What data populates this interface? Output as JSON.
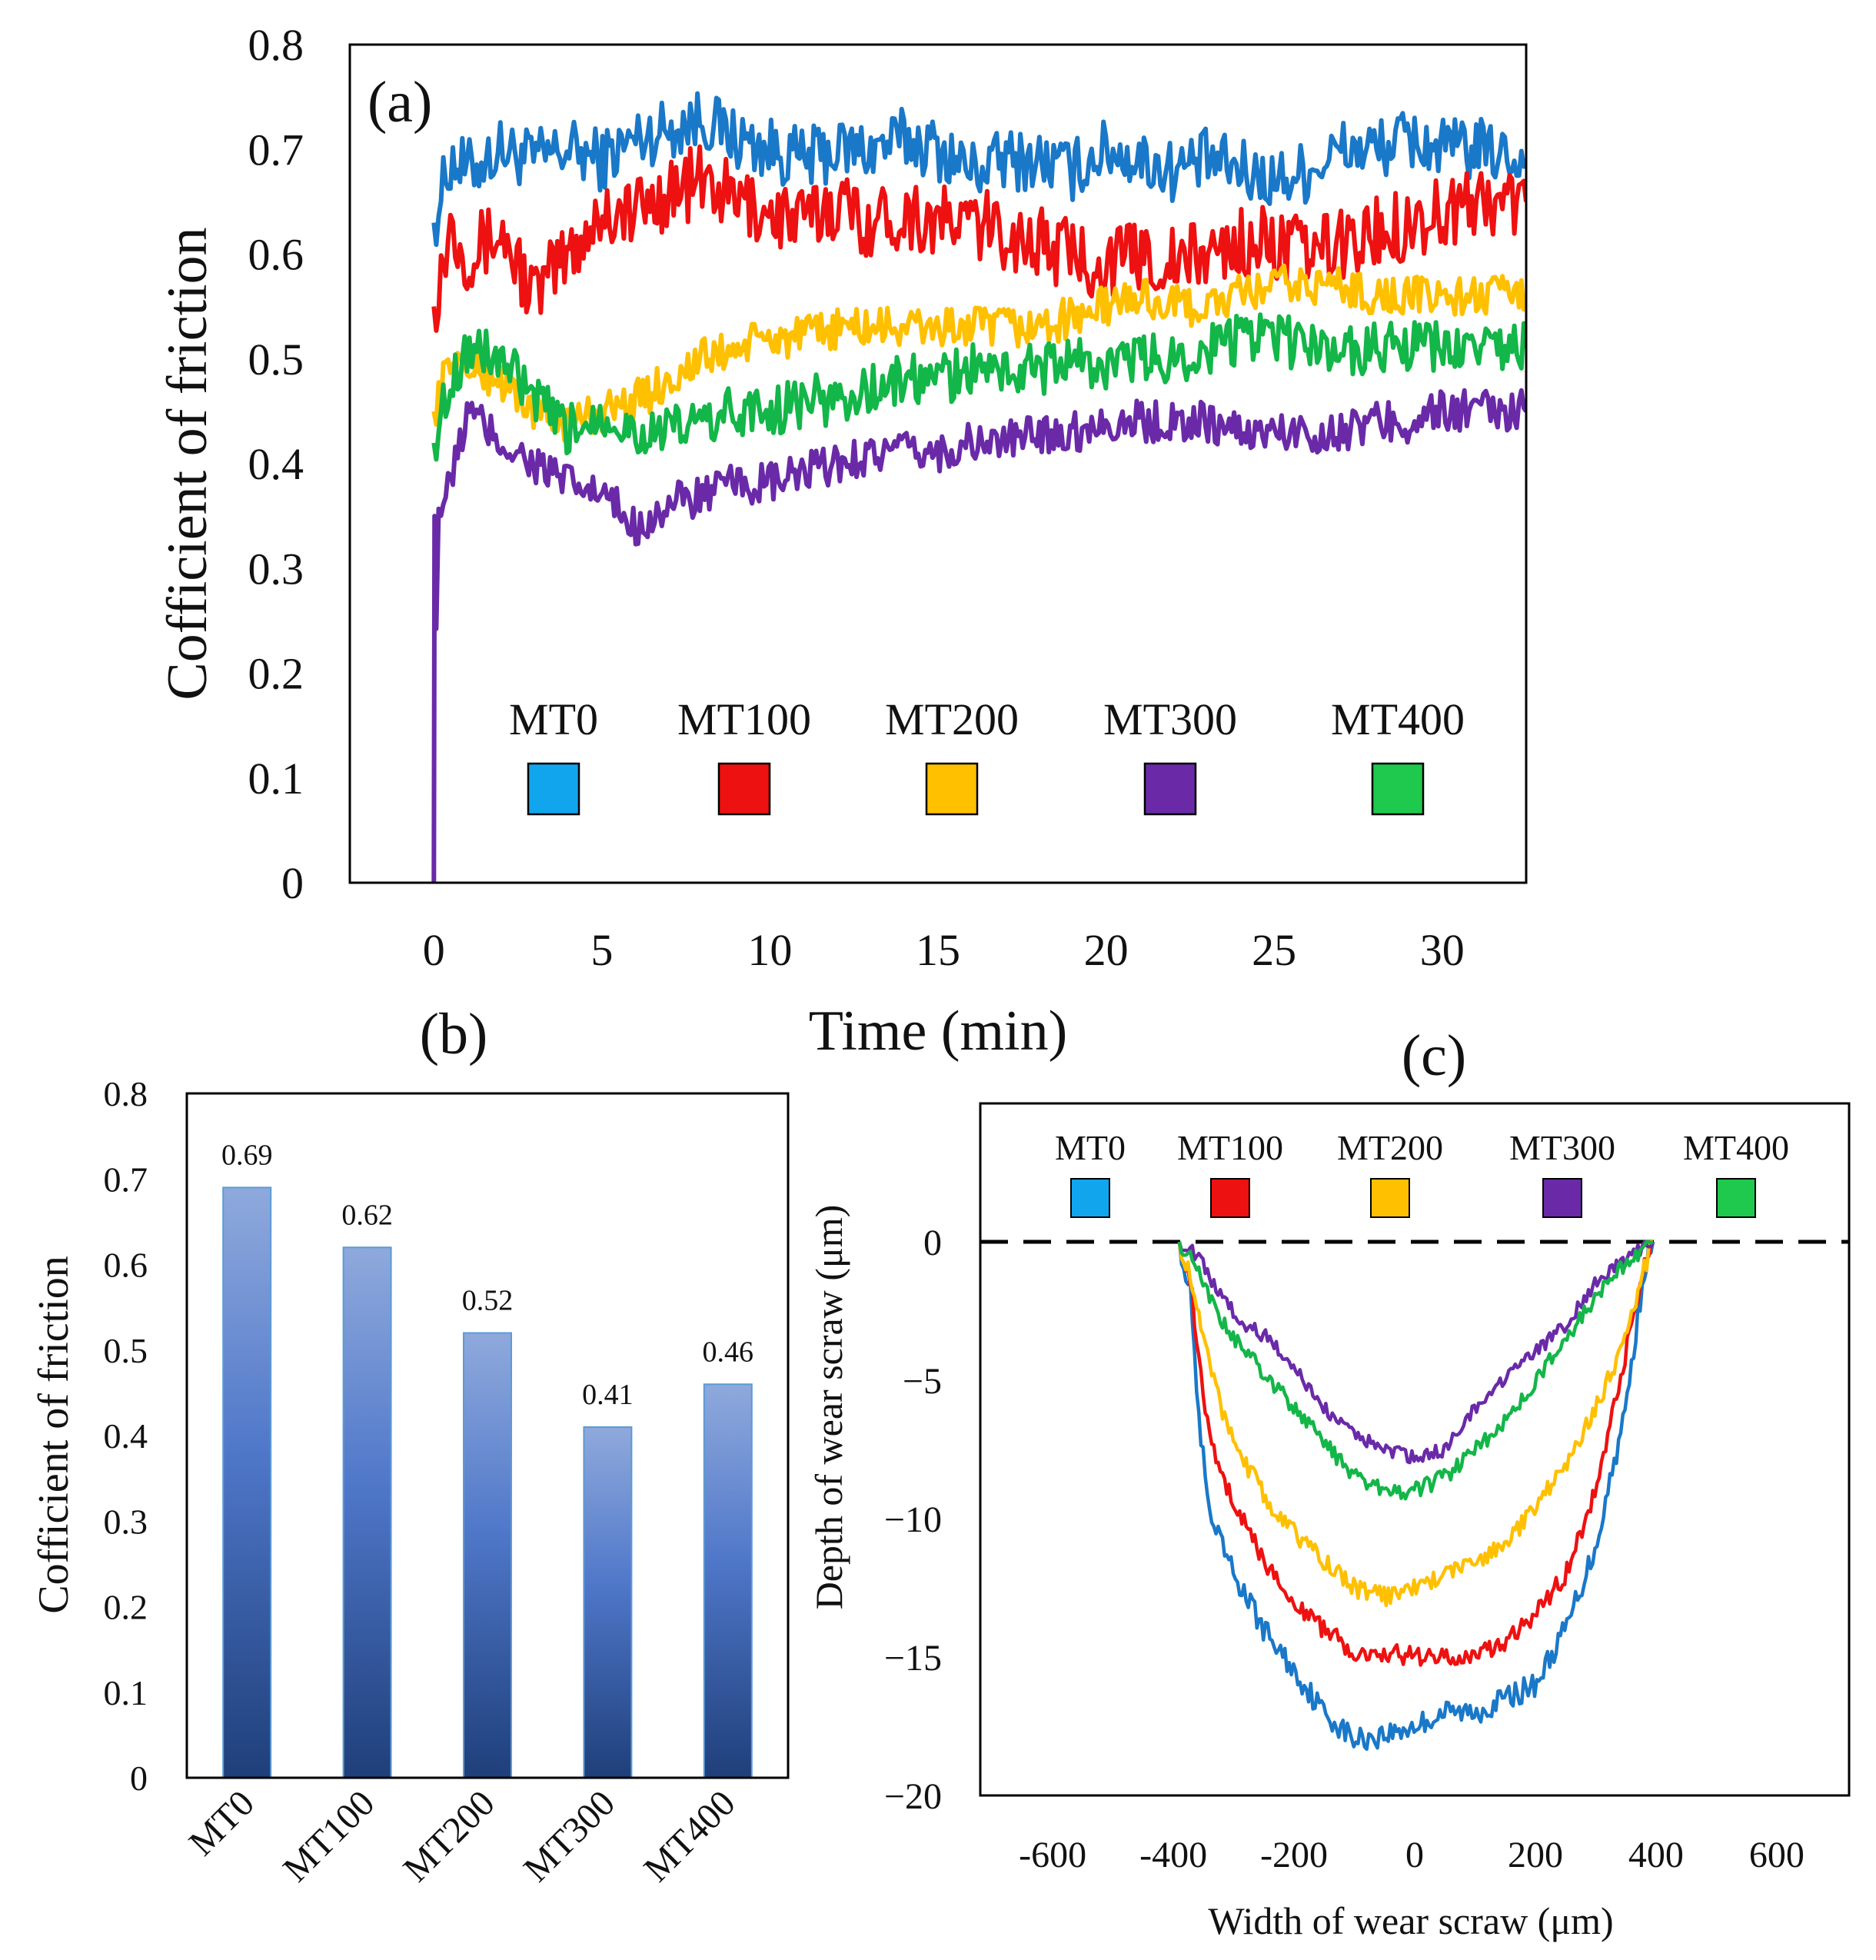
{
  "colors": {
    "MT0": "#1a78c8",
    "MT100": "#ee1111",
    "MT200": "#ffc000",
    "MT300": "#6a2aa8",
    "MT400": "#13b648",
    "bar_top": "#8fa9dc",
    "bar_mid": "#4f77c9",
    "bar_bottom": "#1f3f7a",
    "bar_edge": "#5b9bd5",
    "legend_MT0": "#11a5ee",
    "legend_MT400": "#1ec94e"
  },
  "chart_data": [
    {
      "panel": "(a)",
      "type": "line",
      "xlabel": "Time (min)",
      "ylabel": "Cofficient of friction",
      "xlim": [
        -2.5,
        32.5
      ],
      "ylim": [
        0,
        0.8
      ],
      "xticks": [
        "0",
        "5",
        "10",
        "15",
        "20",
        "25",
        "30"
      ],
      "yticks": [
        "0",
        "0.1",
        "0.2",
        "0.3",
        "0.4",
        "0.5",
        "0.6",
        "0.7",
        "0.8"
      ],
      "legend": [
        "MT0",
        "MT100",
        "MT200",
        "MT300",
        "MT400"
      ],
      "series": [
        {
          "name": "MT0",
          "x": [
            0,
            0.5,
            1,
            2,
            3,
            4,
            5,
            6,
            7,
            8,
            9,
            10,
            11,
            12,
            13,
            14,
            15,
            16,
            17,
            18,
            19,
            20,
            21,
            22,
            23,
            24,
            25,
            26,
            27,
            28,
            29,
            30,
            31,
            32.5
          ],
          "y": [
            0.63,
            0.69,
            0.68,
            0.7,
            0.69,
            0.7,
            0.69,
            0.71,
            0.72,
            0.73,
            0.71,
            0.7,
            0.69,
            0.7,
            0.7,
            0.71,
            0.7,
            0.68,
            0.69,
            0.69,
            0.68,
            0.7,
            0.69,
            0.68,
            0.69,
            0.68,
            0.67,
            0.68,
            0.7,
            0.7,
            0.71,
            0.7,
            0.7,
            0.69
          ],
          "noise": 0.03
        },
        {
          "name": "MT100",
          "x": [
            0,
            0.5,
            1,
            2,
            3,
            4,
            5,
            6,
            7,
            8,
            9,
            10,
            11,
            12,
            13,
            14,
            15,
            16,
            17,
            18,
            19,
            20,
            21,
            22,
            23,
            24,
            25,
            26,
            27,
            28,
            29,
            30,
            31,
            32.5
          ],
          "y": [
            0.55,
            0.63,
            0.6,
            0.62,
            0.56,
            0.6,
            0.64,
            0.64,
            0.66,
            0.67,
            0.65,
            0.64,
            0.63,
            0.65,
            0.63,
            0.64,
            0.63,
            0.63,
            0.62,
            0.61,
            0.6,
            0.59,
            0.6,
            0.59,
            0.6,
            0.61,
            0.61,
            0.6,
            0.61,
            0.62,
            0.63,
            0.64,
            0.65,
            0.65
          ],
          "noise": 0.035
        },
        {
          "name": "MT200",
          "x": [
            0,
            0.5,
            1,
            2,
            3,
            4,
            5,
            6,
            7,
            8,
            9,
            10,
            11,
            12,
            13,
            14,
            15,
            16,
            17,
            18,
            19,
            20,
            21,
            22,
            23,
            24,
            25,
            26,
            27,
            28,
            29,
            30,
            31,
            32.5
          ],
          "y": [
            0.45,
            0.5,
            0.49,
            0.48,
            0.45,
            0.44,
            0.45,
            0.46,
            0.48,
            0.5,
            0.51,
            0.52,
            0.52,
            0.53,
            0.53,
            0.53,
            0.53,
            0.53,
            0.53,
            0.53,
            0.54,
            0.55,
            0.56,
            0.55,
            0.55,
            0.56,
            0.57,
            0.57,
            0.57,
            0.56,
            0.56,
            0.56,
            0.56,
            0.56
          ],
          "noise": 0.02
        },
        {
          "name": "MT300",
          "x": [
            0,
            0.05,
            0.1,
            0.5,
            1,
            2,
            3,
            4,
            5,
            6,
            7,
            8,
            9,
            10,
            11,
            12,
            13,
            14,
            15,
            16,
            17,
            18,
            19,
            20,
            21,
            22,
            23,
            24,
            25,
            26,
            27,
            28,
            29,
            30,
            31,
            32.5
          ],
          "y": [
            0,
            0.2,
            0.35,
            0.38,
            0.45,
            0.42,
            0.4,
            0.38,
            0.37,
            0.34,
            0.36,
            0.37,
            0.38,
            0.38,
            0.39,
            0.4,
            0.41,
            0.41,
            0.41,
            0.42,
            0.42,
            0.43,
            0.43,
            0.44,
            0.44,
            0.44,
            0.44,
            0.43,
            0.43,
            0.43,
            0.43,
            0.44,
            0.44,
            0.45,
            0.45,
            0.45
          ],
          "noise": 0.02
        },
        {
          "name": "MT400",
          "x": [
            0,
            0.5,
            1,
            2,
            3,
            4,
            5,
            6,
            7,
            8,
            9,
            10,
            11,
            12,
            13,
            14,
            15,
            16,
            17,
            18,
            19,
            20,
            21,
            22,
            23,
            24,
            25,
            26,
            27,
            28,
            29,
            30,
            31,
            32.5
          ],
          "y": [
            0.42,
            0.48,
            0.51,
            0.5,
            0.46,
            0.43,
            0.45,
            0.43,
            0.43,
            0.44,
            0.45,
            0.45,
            0.46,
            0.46,
            0.47,
            0.48,
            0.48,
            0.49,
            0.49,
            0.49,
            0.5,
            0.49,
            0.5,
            0.5,
            0.51,
            0.52,
            0.52,
            0.51,
            0.51,
            0.51,
            0.51,
            0.51,
            0.51,
            0.51
          ],
          "noise": 0.025
        }
      ]
    },
    {
      "panel": "(b)",
      "type": "bar",
      "ylabel": "Cofficient of friction",
      "ylim": [
        0,
        0.8
      ],
      "yticks": [
        "0",
        "0.1",
        "0.2",
        "0.3",
        "0.4",
        "0.5",
        "0.6",
        "0.7",
        "0.8"
      ],
      "categories": [
        "MT0",
        "MT100",
        "MT200",
        "MT300",
        "MT400"
      ],
      "values": [
        0.69,
        0.62,
        0.52,
        0.41,
        0.46
      ],
      "value_labels": [
        "0.69",
        "0.62",
        "0.52",
        "0.41",
        "0.46"
      ]
    },
    {
      "panel": "(c)",
      "type": "line",
      "xlabel": "Width of wear scraw (μm)",
      "ylabel": "Depth of wear scraw (μm)",
      "xlim": [
        -720,
        720
      ],
      "ylim": [
        -20,
        5
      ],
      "xticks": [
        "-600",
        "-400",
        "-200",
        "0",
        "200",
        "400",
        "600"
      ],
      "yticks": [
        "0",
        "−5",
        "−10",
        "−15",
        "−20"
      ],
      "reference_line": 0,
      "legend": [
        "MT0",
        "MT100",
        "MT200",
        "MT300",
        "MT400"
      ],
      "series": [
        {
          "name": "MT0",
          "x": [
            -390,
            -370,
            -360,
            -340,
            -300,
            -250,
            -200,
            -150,
            -100,
            -50,
            0,
            50,
            100,
            150,
            200,
            250,
            300,
            350,
            380,
            395
          ],
          "y": [
            0,
            -2,
            -6,
            -10,
            -12,
            -14,
            -15.5,
            -17,
            -18,
            -17.8,
            -17.5,
            -17,
            -17,
            -16.5,
            -16,
            -14,
            -11,
            -6,
            -1,
            0
          ],
          "noise": 0.45
        },
        {
          "name": "MT100",
          "x": [
            -390,
            -370,
            -360,
            -340,
            -300,
            -250,
            -200,
            -150,
            -100,
            -50,
            0,
            50,
            100,
            150,
            200,
            250,
            300,
            350,
            380,
            395
          ],
          "y": [
            0,
            -1.5,
            -4,
            -7,
            -9.5,
            -11.5,
            -13,
            -14,
            -14.8,
            -14.8,
            -15,
            -15,
            -15,
            -14.5,
            -13.5,
            -12,
            -9,
            -4,
            -1,
            0
          ],
          "noise": 0.35
        },
        {
          "name": "MT200",
          "x": [
            -390,
            -370,
            -350,
            -320,
            -280,
            -240,
            -200,
            -150,
            -100,
            -50,
            0,
            50,
            100,
            150,
            200,
            250,
            300,
            340,
            380,
            395
          ],
          "y": [
            0,
            -1.5,
            -3.5,
            -6,
            -8,
            -9.5,
            -10.5,
            -11.5,
            -12.5,
            -12.8,
            -12.5,
            -12,
            -11.5,
            -11,
            -9.5,
            -8,
            -6,
            -4,
            -1,
            0
          ],
          "noise": 0.35
        },
        {
          "name": "MT300",
          "x": [
            -390,
            -360,
            -320,
            -280,
            -240,
            -200,
            -150,
            -100,
            -50,
            0,
            50,
            100,
            150,
            200,
            250,
            300,
            340,
            370,
            395
          ],
          "y": [
            0,
            -0.5,
            -2,
            -3,
            -3.5,
            -4.5,
            -6,
            -7,
            -7.5,
            -7.8,
            -7.5,
            -6,
            -5,
            -4,
            -3,
            -1.5,
            -0.8,
            -0.3,
            0
          ],
          "noise": 0.25
        },
        {
          "name": "MT400",
          "x": [
            -390,
            -360,
            -330,
            -300,
            -260,
            -220,
            -180,
            -140,
            -100,
            -50,
            0,
            50,
            100,
            150,
            200,
            250,
            300,
            340,
            370,
            395
          ],
          "y": [
            0,
            -1,
            -2.5,
            -3.5,
            -4.5,
            -5.5,
            -6.5,
            -7.5,
            -8.5,
            -9,
            -9,
            -8.5,
            -7.5,
            -6.5,
            -5,
            -3.5,
            -2,
            -1,
            -0.5,
            0
          ],
          "noise": 0.3
        }
      ]
    }
  ]
}
